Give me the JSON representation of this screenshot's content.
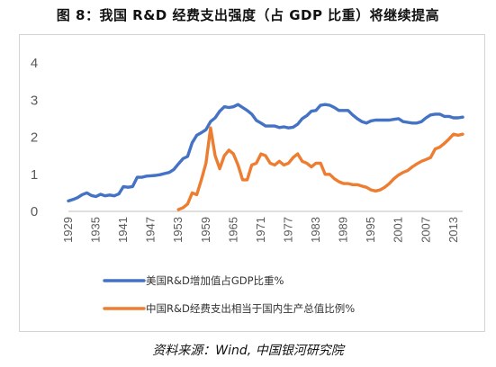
{
  "title": "图 8：我国 R&D 经费支出强度（占 GDP 比重）将继续提高",
  "source": "资料来源：Wind, 中国银河研究院",
  "chart_data": {
    "type": "line",
    "ylim": [
      0,
      4
    ],
    "yticks": [
      0,
      1,
      2,
      3,
      4
    ],
    "x_tick_labels": [
      "1929",
      "1935",
      "1941",
      "1947",
      "1953",
      "1959",
      "1965",
      "1971",
      "1977",
      "1983",
      "1989",
      "1995",
      "2001",
      "2007",
      "2013"
    ],
    "grid": false,
    "legend_position": "bottom",
    "series": [
      {
        "name": "美国R&D增加值占GDP比重%",
        "color": "#4472C4",
        "x": [
          1929,
          1930,
          1931,
          1932,
          1933,
          1934,
          1935,
          1936,
          1937,
          1938,
          1939,
          1940,
          1941,
          1942,
          1943,
          1944,
          1945,
          1946,
          1947,
          1948,
          1949,
          1950,
          1951,
          1952,
          1953,
          1954,
          1955,
          1956,
          1957,
          1958,
          1959,
          1960,
          1961,
          1962,
          1963,
          1964,
          1965,
          1966,
          1967,
          1968,
          1969,
          1970,
          1971,
          1972,
          1973,
          1974,
          1975,
          1976,
          1977,
          1978,
          1979,
          1980,
          1981,
          1982,
          1983,
          1984,
          1985,
          1986,
          1987,
          1988,
          1989,
          1990,
          1991,
          1992,
          1993,
          1994,
          1995,
          1996,
          1997,
          1998,
          1999,
          2000,
          2001,
          2002,
          2003,
          2004,
          2005,
          2006,
          2007,
          2008,
          2009,
          2010,
          2011,
          2012,
          2013,
          2014,
          2015
        ],
        "y": [
          0.28,
          0.32,
          0.37,
          0.45,
          0.5,
          0.43,
          0.4,
          0.46,
          0.42,
          0.44,
          0.42,
          0.47,
          0.67,
          0.65,
          0.67,
          0.92,
          0.92,
          0.95,
          0.96,
          0.97,
          0.99,
          1.02,
          1.05,
          1.13,
          1.28,
          1.42,
          1.48,
          1.85,
          2.05,
          2.12,
          2.2,
          2.42,
          2.52,
          2.7,
          2.82,
          2.8,
          2.82,
          2.88,
          2.8,
          2.72,
          2.62,
          2.45,
          2.38,
          2.3,
          2.3,
          2.3,
          2.26,
          2.28,
          2.25,
          2.27,
          2.35,
          2.5,
          2.58,
          2.7,
          2.72,
          2.86,
          2.88,
          2.86,
          2.8,
          2.72,
          2.72,
          2.72,
          2.6,
          2.5,
          2.42,
          2.38,
          2.44,
          2.46,
          2.46,
          2.46,
          2.46,
          2.48,
          2.5,
          2.42,
          2.4,
          2.38,
          2.38,
          2.42,
          2.52,
          2.6,
          2.62,
          2.62,
          2.56,
          2.56,
          2.52,
          2.52,
          2.54
        ]
      },
      {
        "name": "中国R&D经费支出相当于国内生产总值比例%",
        "color": "#ED7D31",
        "x": [
          1953,
          1954,
          1955,
          1956,
          1957,
          1958,
          1959,
          1960,
          1961,
          1962,
          1963,
          1964,
          1965,
          1966,
          1967,
          1968,
          1969,
          1970,
          1971,
          1972,
          1973,
          1974,
          1975,
          1976,
          1977,
          1978,
          1979,
          1980,
          1981,
          1982,
          1983,
          1984,
          1985,
          1986,
          1987,
          1988,
          1989,
          1990,
          1991,
          1992,
          1993,
          1994,
          1995,
          1996,
          1997,
          1998,
          1999,
          2000,
          2001,
          2002,
          2003,
          2004,
          2005,
          2006,
          2007,
          2008,
          2009,
          2010,
          2011,
          2012,
          2013,
          2014,
          2015
        ],
        "y": [
          0.05,
          0.1,
          0.2,
          0.5,
          0.45,
          0.85,
          1.3,
          2.25,
          1.5,
          1.15,
          1.5,
          1.65,
          1.55,
          1.25,
          0.85,
          0.85,
          1.25,
          1.3,
          1.55,
          1.5,
          1.3,
          1.25,
          1.35,
          1.25,
          1.3,
          1.45,
          1.55,
          1.35,
          1.3,
          1.2,
          1.3,
          1.3,
          1.0,
          1.0,
          0.88,
          0.8,
          0.75,
          0.75,
          0.72,
          0.72,
          0.68,
          0.65,
          0.58,
          0.55,
          0.58,
          0.65,
          0.75,
          0.88,
          0.98,
          1.05,
          1.1,
          1.2,
          1.28,
          1.35,
          1.4,
          1.45,
          1.68,
          1.73,
          1.83,
          1.95,
          2.08,
          2.05,
          2.08
        ]
      }
    ]
  }
}
